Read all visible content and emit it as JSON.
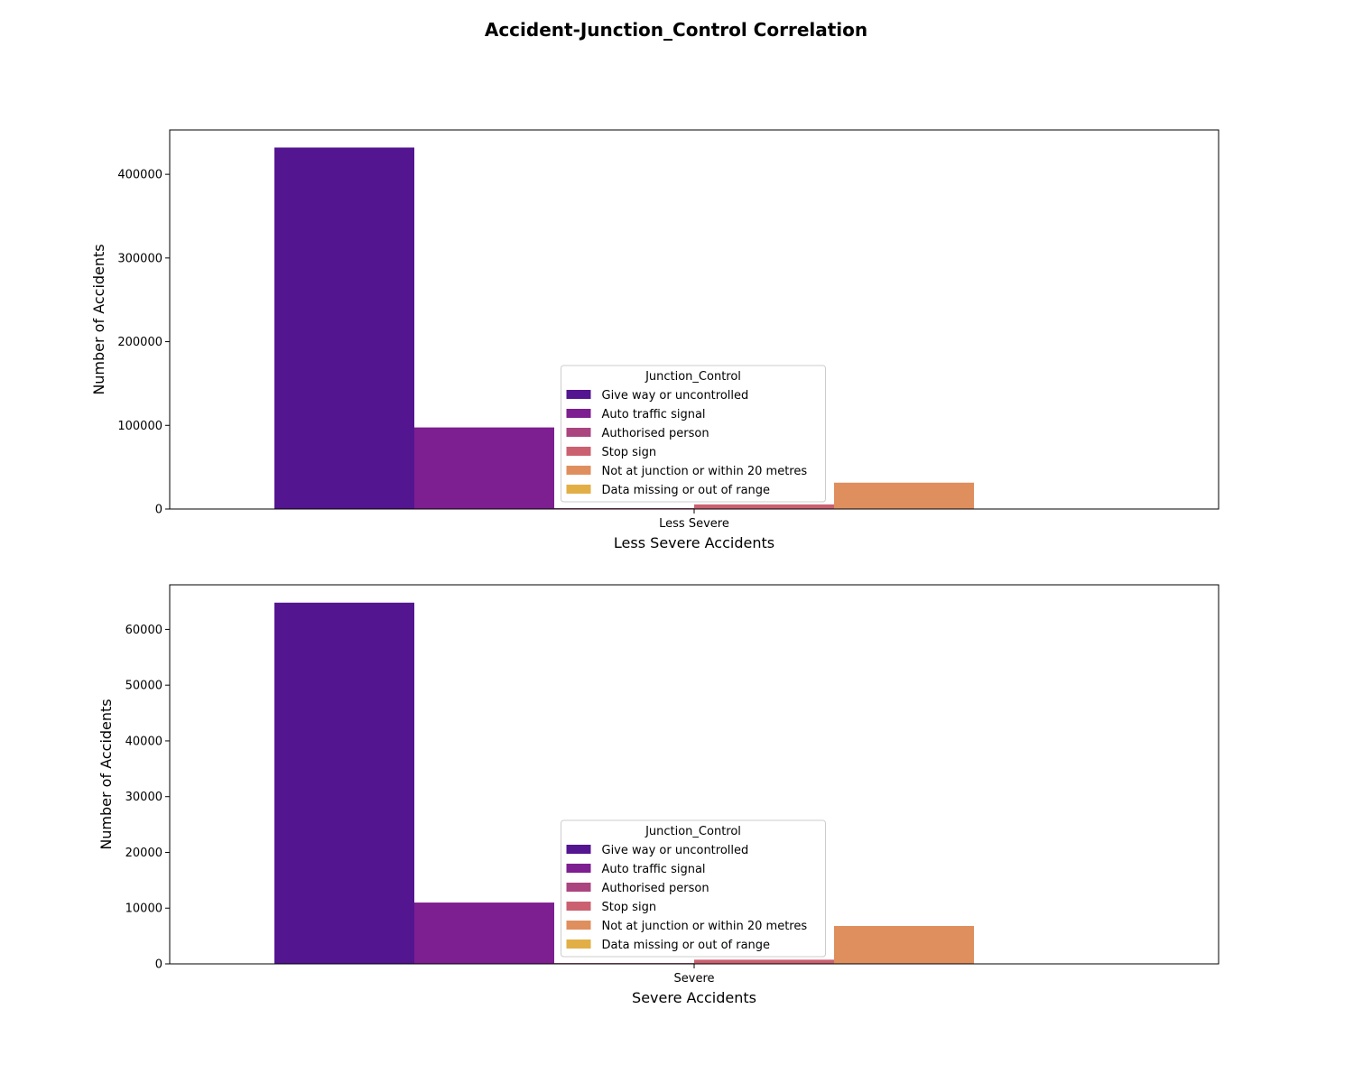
{
  "figure": {
    "title": "Accident-Junction_Control Correlation"
  },
  "palette": [
    "#531590",
    "#7d1e91",
    "#aa4580",
    "#cb6170",
    "#df8f5e",
    "#e2af46"
  ],
  "chart_data": [
    {
      "type": "bar",
      "categories": [
        "Less Severe"
      ],
      "xlabel": "Less Severe Accidents",
      "ylabel": "Number of Accidents",
      "ylim": [
        0,
        453000
      ],
      "yticks": [
        0,
        100000,
        200000,
        300000,
        400000
      ],
      "legend": {
        "title": "Junction_Control",
        "placement": "lower-center"
      },
      "series": [
        {
          "name": "Give way or uncontrolled",
          "values": [
            432000
          ]
        },
        {
          "name": "Auto traffic signal",
          "values": [
            97500
          ]
        },
        {
          "name": "Authorised person",
          "values": [
            1100
          ]
        },
        {
          "name": "Stop sign",
          "values": [
            5500
          ]
        },
        {
          "name": "Not at junction or within 20 metres",
          "values": [
            31500
          ]
        },
        {
          "name": "Data missing or out of range",
          "values": [
            0
          ]
        }
      ]
    },
    {
      "type": "bar",
      "categories": [
        "Severe"
      ],
      "xlabel": "Severe Accidents",
      "ylabel": "Number of Accidents",
      "ylim": [
        0,
        68000
      ],
      "yticks": [
        0,
        10000,
        20000,
        30000,
        40000,
        50000,
        60000
      ],
      "legend": {
        "title": "Junction_Control",
        "placement": "lower-center"
      },
      "series": [
        {
          "name": "Give way or uncontrolled",
          "values": [
            64800
          ]
        },
        {
          "name": "Auto traffic signal",
          "values": [
            11000
          ]
        },
        {
          "name": "Authorised person",
          "values": [
            150
          ]
        },
        {
          "name": "Stop sign",
          "values": [
            750
          ]
        },
        {
          "name": "Not at junction or within 20 metres",
          "values": [
            6800
          ]
        },
        {
          "name": "Data missing or out of range",
          "values": [
            0
          ]
        }
      ]
    }
  ]
}
